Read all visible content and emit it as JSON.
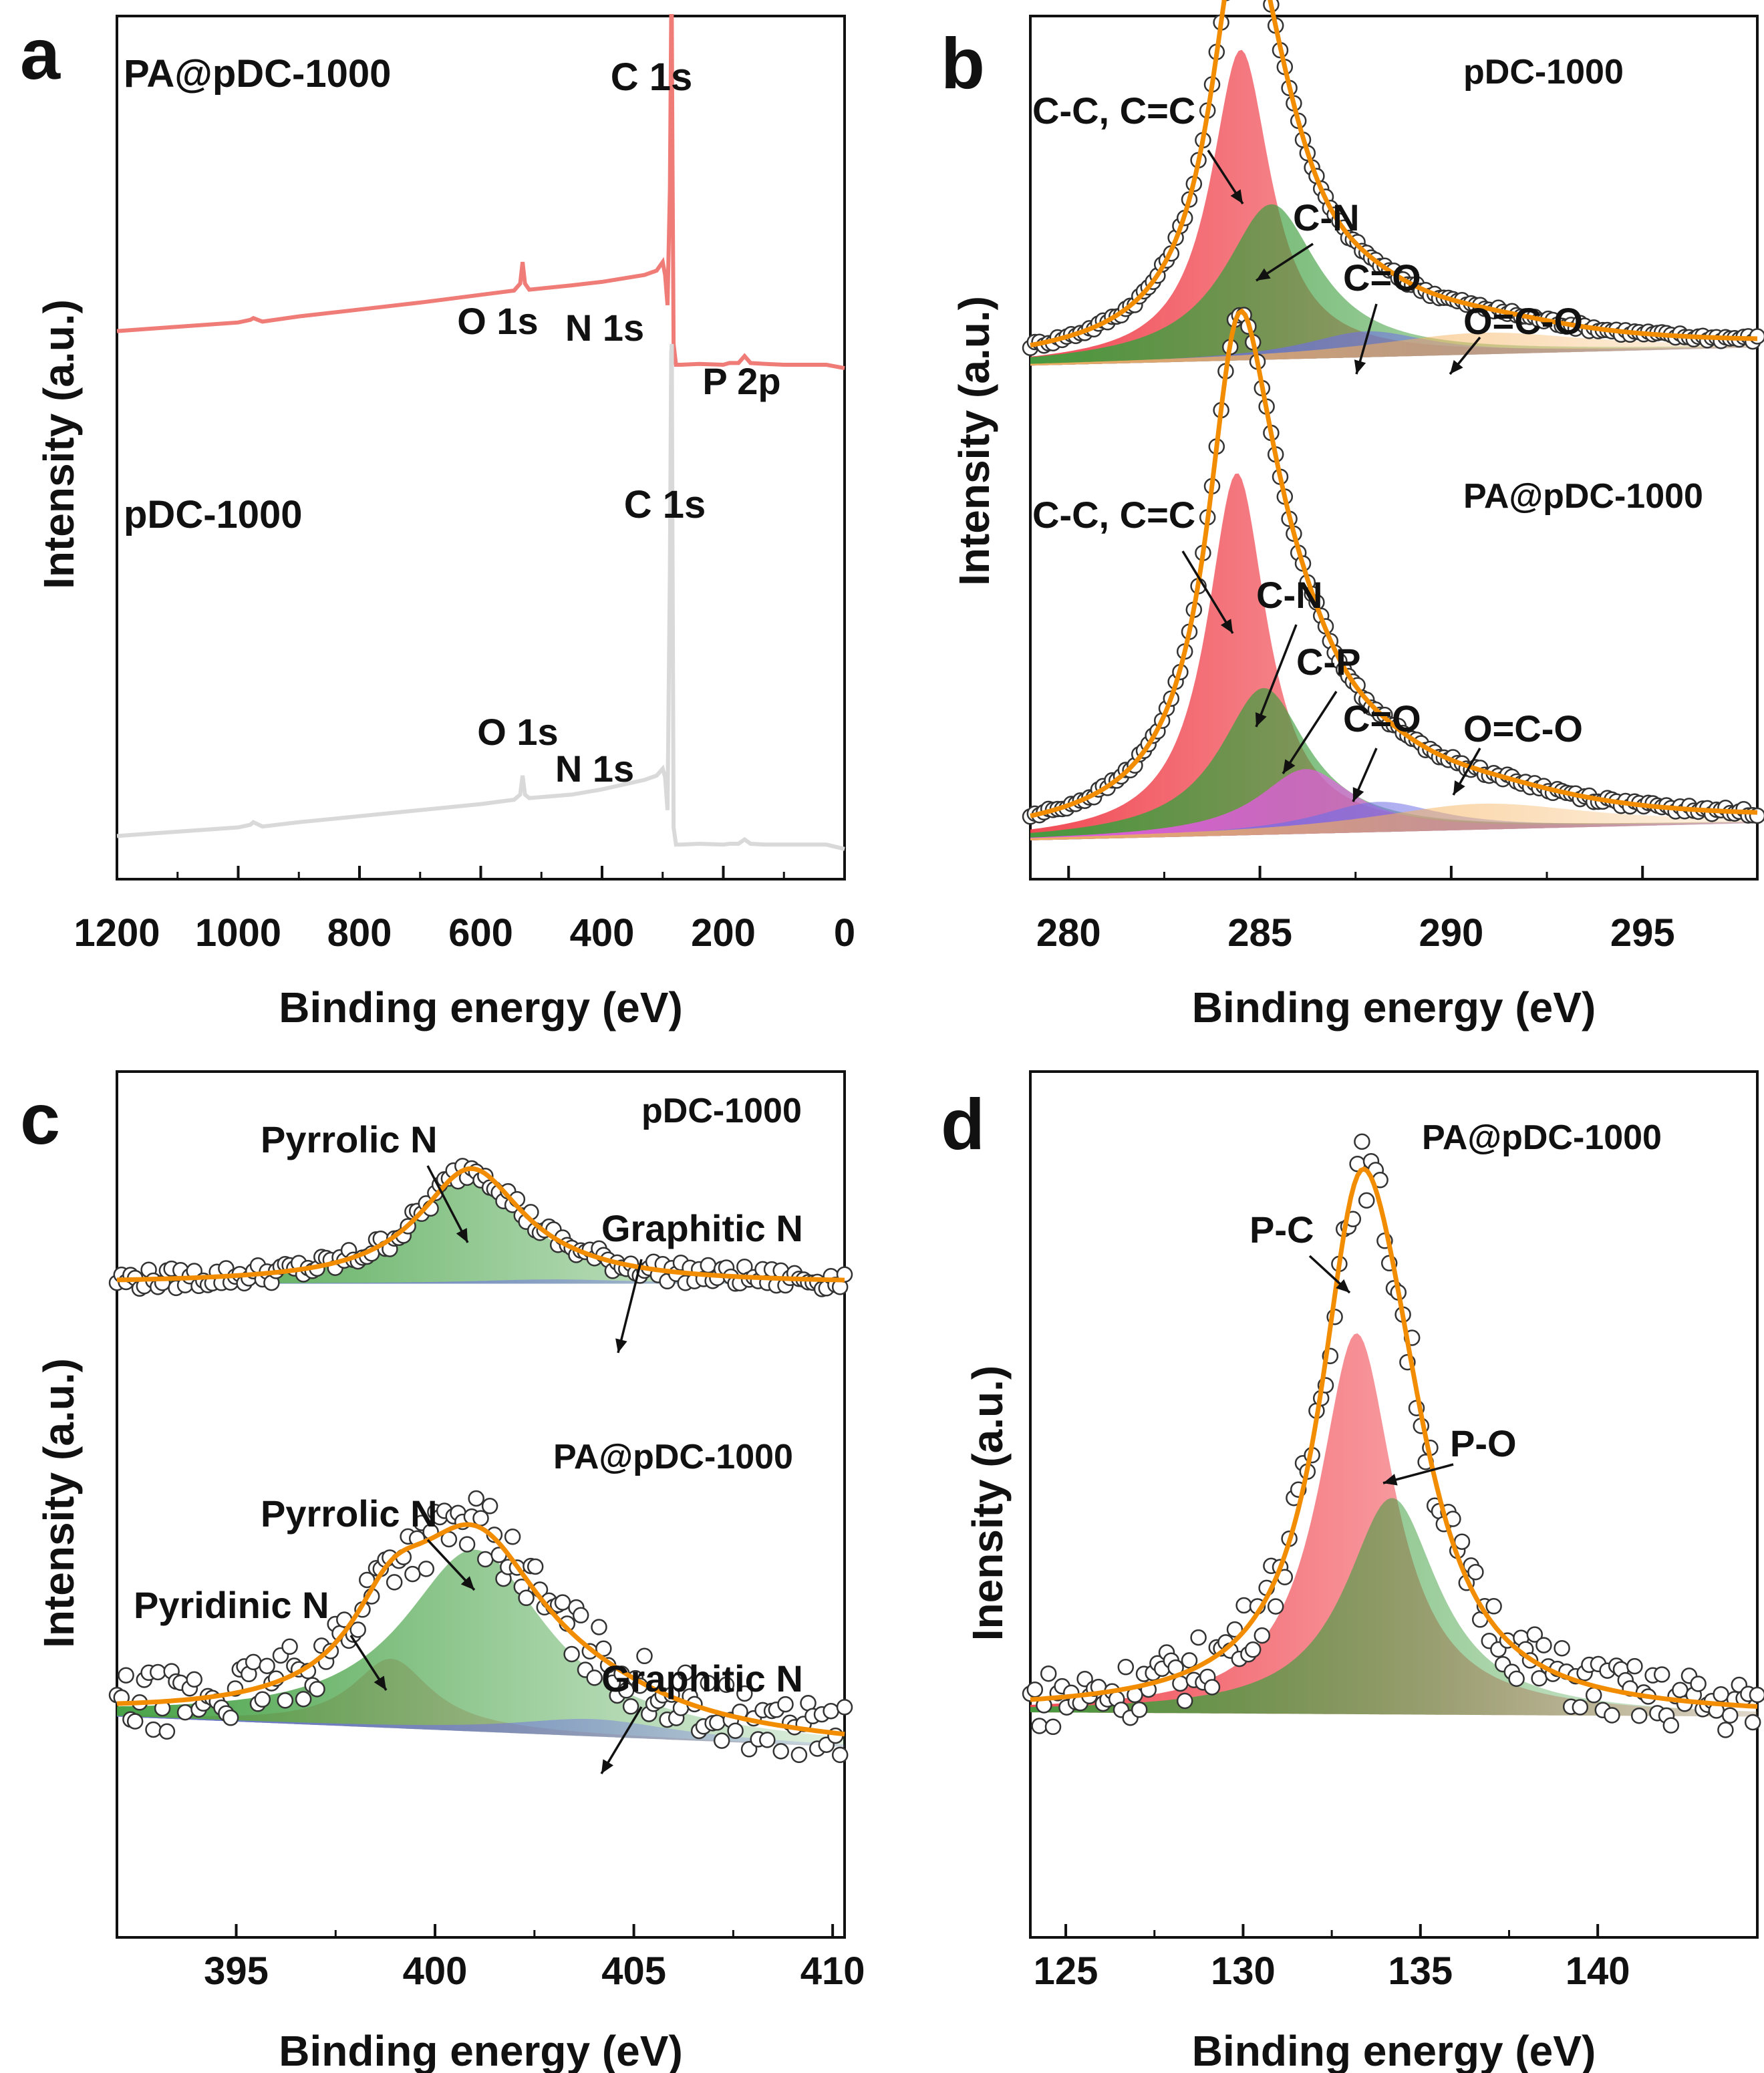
{
  "figure": {
    "description_free": true,
    "colors": {
      "fit": "#F28C00",
      "data_edge": "#333333",
      "red": "#F0424C",
      "green": "#3E9E3E",
      "blue": "#6E6EE6",
      "magenta": "#EE55EE",
      "orange_fill": "#F6B15A",
      "pink": "#F29A9A",
      "survey_top": "#F07C78",
      "survey_bottom": "#D9D9D9"
    }
  },
  "chart_data": [
    {
      "panel": "a",
      "type": "line",
      "title": "",
      "xlabel": "Binding energy (eV)",
      "ylabel": "Intensity (a.u.)",
      "xlim": [
        1200,
        0
      ],
      "xticks": [
        "1200",
        "1000",
        "800",
        "600",
        "400",
        "200",
        "0"
      ],
      "xtick_values": [
        1200,
        1000,
        800,
        600,
        400,
        200,
        0
      ],
      "ylim": [
        0,
        1
      ],
      "series": [
        {
          "name": "PA@pDC-1000",
          "color": "#F07C78",
          "x": [
            1200,
            1100,
            1000,
            980,
            975,
            960,
            900,
            800,
            700,
            600,
            545,
            535,
            531,
            527,
            520,
            450,
            400,
            330,
            310,
            300,
            296,
            292,
            288,
            286,
            285,
            284,
            282,
            278,
            270,
            240,
            200,
            190,
            175,
            165,
            155,
            130,
            100,
            60,
            30,
            0
          ],
          "y": [
            0.635,
            0.64,
            0.645,
            0.648,
            0.65,
            0.646,
            0.652,
            0.66,
            0.668,
            0.677,
            0.682,
            0.69,
            0.715,
            0.69,
            0.683,
            0.688,
            0.692,
            0.7,
            0.705,
            0.715,
            0.7,
            0.665,
            0.8,
            1.0,
            1.0,
            0.85,
            0.62,
            0.596,
            0.596,
            0.597,
            0.596,
            0.598,
            0.598,
            0.606,
            0.598,
            0.597,
            0.596,
            0.596,
            0.596,
            0.592
          ]
        },
        {
          "name": "pDC-1000",
          "color": "#D9D9D9",
          "x": [
            1200,
            1100,
            1000,
            980,
            975,
            960,
            900,
            800,
            700,
            600,
            545,
            535,
            531,
            527,
            520,
            450,
            400,
            330,
            310,
            300,
            296,
            292,
            288,
            286,
            285,
            284,
            282,
            278,
            270,
            240,
            200,
            190,
            175,
            165,
            155,
            130,
            100,
            60,
            30,
            0
          ],
          "y": [
            0.05,
            0.055,
            0.06,
            0.063,
            0.066,
            0.061,
            0.066,
            0.073,
            0.08,
            0.087,
            0.092,
            0.098,
            0.12,
            0.098,
            0.094,
            0.098,
            0.104,
            0.115,
            0.12,
            0.128,
            0.118,
            0.08,
            0.36,
            0.61,
            0.62,
            0.42,
            0.06,
            0.04,
            0.04,
            0.041,
            0.04,
            0.041,
            0.041,
            0.046,
            0.041,
            0.04,
            0.04,
            0.04,
            0.04,
            0.035
          ]
        }
      ],
      "annotations": [
        "PA@pDC-1000",
        "C 1s",
        "O 1s",
        "N 1s",
        "P 2p",
        "pDC-1000",
        "C 1s",
        "O 1s",
        "N 1s"
      ]
    },
    {
      "panel": "b",
      "type": "scatter",
      "title": "",
      "xlabel": "Binding energy (eV)",
      "ylabel": "Intensity (a.u.)",
      "xlim": [
        279,
        298
      ],
      "xticks": [
        "280",
        "285",
        "290",
        "295"
      ],
      "xtick_values": [
        280,
        285,
        290,
        295
      ],
      "ylim": [
        0,
        1
      ],
      "subplots": [
        {
          "name": "pDC-1000",
          "baseline_left": 0.595,
          "baseline_right": 0.616,
          "peaks": [
            {
              "label": "C-C, C=C",
              "center": 284.5,
              "height": 0.36,
              "width": 0.95,
              "color": "#F0424C"
            },
            {
              "label": "C-N",
              "center": 285.3,
              "height": 0.18,
              "width": 1.5,
              "color": "#3E9E3E"
            },
            {
              "label": "C=O",
              "center": 287.8,
              "height": 0.03,
              "width": 2.0,
              "color": "#6E6EE6"
            },
            {
              "label": "O=C-O",
              "center": 290.8,
              "height": 0.025,
              "width": 3.5,
              "color": "#F6B15A"
            }
          ]
        },
        {
          "name": "PA@pDC-1000",
          "baseline_left": 0.045,
          "baseline_right": 0.065,
          "peaks": [
            {
              "label": "C-C, C=C",
              "center": 284.4,
              "height": 0.42,
              "width": 0.95,
              "color": "#F0424C"
            },
            {
              "label": "C-N",
              "center": 285.1,
              "height": 0.17,
              "width": 1.4,
              "color": "#3E9E3E"
            },
            {
              "label": "C-P",
              "center": 286.2,
              "height": 0.075,
              "width": 1.5,
              "color": "#EE55EE"
            },
            {
              "label": "C=O",
              "center": 288.1,
              "height": 0.035,
              "width": 2.0,
              "color": "#6E6EE6"
            },
            {
              "label": "O=C-O",
              "center": 290.8,
              "height": 0.03,
              "width": 3.5,
              "color": "#F6B15A"
            }
          ]
        }
      ],
      "annotations": [
        "pDC-1000",
        "PA@pDC-1000",
        "C-C, C=C",
        "C-N",
        "C=O",
        "O=C-O",
        "C-C, C=C",
        "C-N",
        "C-P",
        "C=O",
        "O=C-O"
      ]
    },
    {
      "panel": "c",
      "type": "scatter",
      "title": "",
      "xlabel": "Binding energy (eV)",
      "ylabel": "Intensity (a.u.)",
      "xlim": [
        392,
        410.3
      ],
      "xticks": [
        "395",
        "400",
        "405",
        "410"
      ],
      "xtick_values": [
        395,
        400,
        405,
        410
      ],
      "ylim": [
        0,
        1
      ],
      "subplots": [
        {
          "name": "pDC-1000",
          "baseline_left": 0.755,
          "baseline_right": 0.755,
          "noise": 0.012,
          "peaks": [
            {
              "label": "Pyrrolic N",
              "center": 400.9,
              "height": 0.13,
              "width": 1.6,
              "color": "#3E9E3E"
            },
            {
              "label": "Graphitic N",
              "center": 403.0,
              "height": 0.005,
              "width": 2.5,
              "color": "#6E6EE6"
            }
          ]
        },
        {
          "name": "PA@pDC-1000",
          "baseline_left": 0.255,
          "baseline_right": 0.22,
          "noise": 0.035,
          "peaks": [
            {
              "label": "Pyridinic N",
              "center": 398.9,
              "height": 0.08,
              "width": 1.2,
              "color": "#F29A9A"
            },
            {
              "label": "Pyrrolic N",
              "center": 401.0,
              "height": 0.21,
              "width": 2.2,
              "color": "#3E9E3E"
            },
            {
              "label": "Graphitic N",
              "center": 404.0,
              "height": 0.02,
              "width": 2.5,
              "color": "#6E6EE6"
            }
          ]
        }
      ],
      "annotations": [
        "pDC-1000",
        "Pyrrolic N",
        "Graphitic N",
        "PA@pDC-1000",
        "Pyrrolic N",
        "Pyridinic N",
        "Graphitic N"
      ]
    },
    {
      "panel": "d",
      "type": "scatter",
      "title": "",
      "xlabel": "Binding energy (eV)",
      "ylabel": "Inensity (a.u.)",
      "xlim": [
        124,
        144.5
      ],
      "xticks": [
        "125",
        "130",
        "135",
        "140"
      ],
      "xtick_values": [
        125,
        130,
        135,
        140
      ],
      "ylim": [
        0,
        1
      ],
      "subplots": [
        {
          "name": "PA@pDC-1000",
          "baseline_left": 0.26,
          "baseline_right": 0.255,
          "noise": 0.035,
          "peaks": [
            {
              "label": "P-C",
              "center": 133.2,
              "height": 0.44,
              "width": 1.3,
              "color": "#F0424C"
            },
            {
              "label": "P-O",
              "center": 134.2,
              "height": 0.25,
              "width": 1.6,
              "color": "#3E9E3E"
            }
          ]
        }
      ],
      "annotations": [
        "PA@pDC-1000",
        "P-C",
        "P-O"
      ]
    }
  ]
}
